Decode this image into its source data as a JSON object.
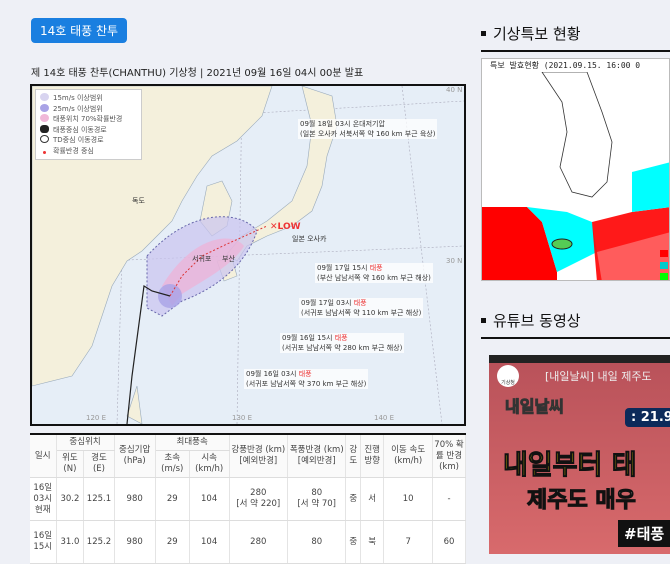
{
  "tag": "14호 태풍 찬투",
  "subtitle": "제 14호 태풍 찬투(CHANTHU) 기상청 | 2021년 09월 16일 04시 00분 발표",
  "map": {
    "legend": [
      "15m/s 이상범위",
      "25m/s 이상범위",
      "태풍위치 70%확률반경",
      "태풍중심 이동경로",
      "TD중심 이동경로",
      "확률반경 중심"
    ],
    "legend_colors": [
      "#d8d4f0",
      "#a9a3e6",
      "#f0b8d8"
    ],
    "places": {
      "dokdo": "독도",
      "osaka": "일본 오사카",
      "busan": "부산",
      "seogwipo": "서귀포",
      "low": "✕LOW"
    },
    "labels": [
      {
        "time": "09월 18일 03시 온대저기압",
        "desc": "(일본 오사카 서북서쪽 약 160 km 부근 육상)"
      },
      {
        "time": "09월 17일 15시 ",
        "type": "태풍",
        "desc": "(부산 남남서쪽 약 160 km 부근 해상)"
      },
      {
        "time": "09월 17일 03시 ",
        "type": "태풍",
        "desc": "(서귀포 남남서쪽 약 110 km 부근 해상)"
      },
      {
        "time": "09월 16일 15시 ",
        "type": "태풍",
        "desc": "(서귀포 남남서쪽 약 280 km 부근 해상)"
      },
      {
        "time": "09월 16일 03시 ",
        "type": "태풍",
        "desc": "(서귀포 남남서쪽 약 370 km 부근 해상)"
      }
    ],
    "axes": {
      "lon": [
        "120 E",
        "130 E",
        "140 E"
      ],
      "lat": [
        "40 N",
        "30 N"
      ]
    }
  },
  "table": {
    "h": {
      "time": "일시",
      "center": "중심위치",
      "lat": "위도 (N)",
      "lon": "경도 (E)",
      "pres": "중심기압 (hPa)",
      "wind": "최대풍속",
      "ms": "초속 (m/s)",
      "kmh": "시속 (km/h)",
      "gale": "강풍반경 (km) [예외반경]",
      "storm": "폭풍반경 (km) [예외반경]",
      "str": "강도",
      "dir": "진행 방향",
      "spd": "이동 속도 (km/h)",
      "prob": "70% 확률 반경 (km)"
    },
    "rows": [
      {
        "time": "16일 03시 현재",
        "lat": "30.2",
        "lon": "125.1",
        "pres": "980",
        "ms": "29",
        "kmh": "104",
        "gale": "280",
        "gale_ex": "[서 약 220]",
        "storm": "80",
        "storm_ex": "[서 약 70]",
        "str": "중",
        "dir": "서",
        "spd": "10",
        "prob": "-"
      },
      {
        "time": "16일 15시",
        "lat": "31.0",
        "lon": "125.2",
        "pres": "980",
        "ms": "29",
        "kmh": "104",
        "gale": "280",
        "gale_ex": "",
        "storm": "80",
        "storm_ex": "",
        "str": "중",
        "dir": "북",
        "spd": "7",
        "prob": "60"
      }
    ]
  },
  "right": {
    "warn_title": "기상특보 현황",
    "warn_caption": "특보 발효현황 (2021.09.15. 16:00 0",
    "yt_title": "유튜브 동영상",
    "video": {
      "title": "[내일날씨] 내일 제주도",
      "date": ": 21.9.",
      "line1": "내일부터 태",
      "line2": "제주도 매우",
      "tag": "#태풍",
      "logo": "내일날씨",
      "agency": "기상청"
    }
  }
}
